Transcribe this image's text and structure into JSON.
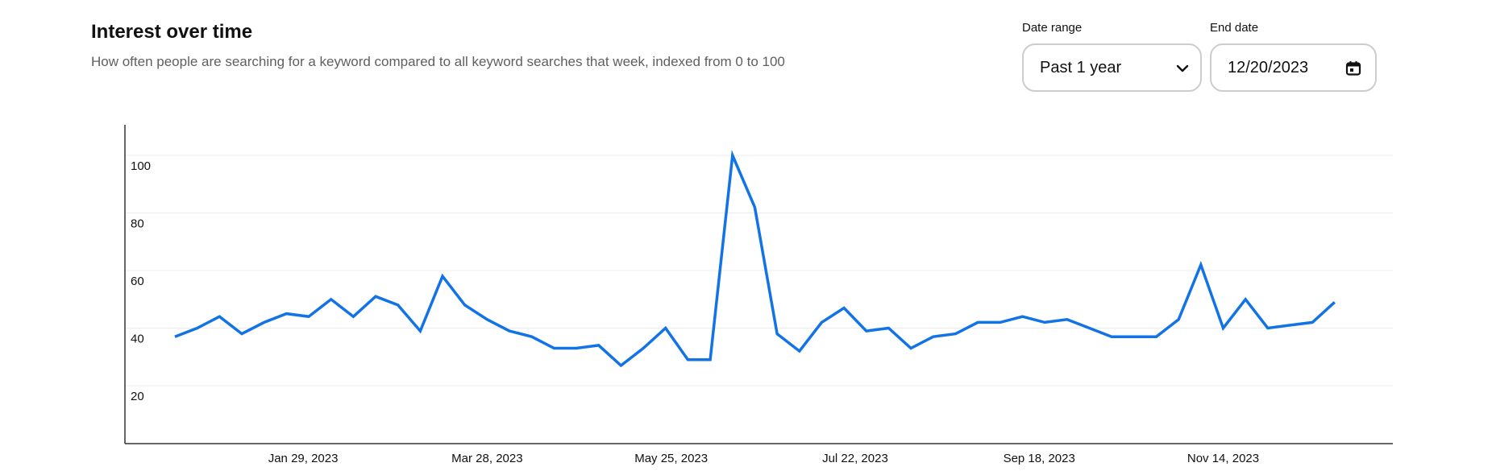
{
  "header": {
    "title": "Interest over time",
    "subtitle": "How often people are searching for a keyword compared to all keyword searches that week, indexed from 0 to 100"
  },
  "controls": {
    "date_range_label": "Date range",
    "date_range_value": "Past 1 year",
    "date_range_icon": "chevron-down-icon",
    "end_date_label": "End date",
    "end_date_value": "12/20/2023",
    "end_date_icon": "calendar-icon"
  },
  "colors": {
    "line": "#1273e6",
    "grid": "#ececec",
    "axis": "#333333"
  },
  "chart_data": {
    "type": "line",
    "title": "Interest over time",
    "xlabel": "",
    "ylabel": "",
    "ylim": [
      0,
      110
    ],
    "grid": true,
    "yticks": [
      20,
      40,
      60,
      80,
      100
    ],
    "xtick_labels": [
      "Jan 29, 2023",
      "Mar 28, 2023",
      "May 25, 2023",
      "Jul 22, 2023",
      "Sep 18, 2023",
      "Nov 14, 2023"
    ],
    "xtick_indices": [
      5.75,
      14,
      22.25,
      30.5,
      38.75,
      47
    ],
    "series": [
      {
        "values": [
          37,
          40,
          44,
          38,
          42,
          45,
          44,
          50,
          44,
          51,
          48,
          39,
          58,
          48,
          43,
          39,
          37,
          33,
          33,
          34,
          27,
          33,
          40,
          29,
          29,
          100,
          82,
          38,
          32,
          42,
          47,
          39,
          40,
          33,
          37,
          38,
          42,
          42,
          44,
          42,
          43,
          40,
          37,
          37,
          37,
          43,
          62,
          40,
          50,
          40,
          41,
          42,
          49
        ]
      }
    ]
  }
}
